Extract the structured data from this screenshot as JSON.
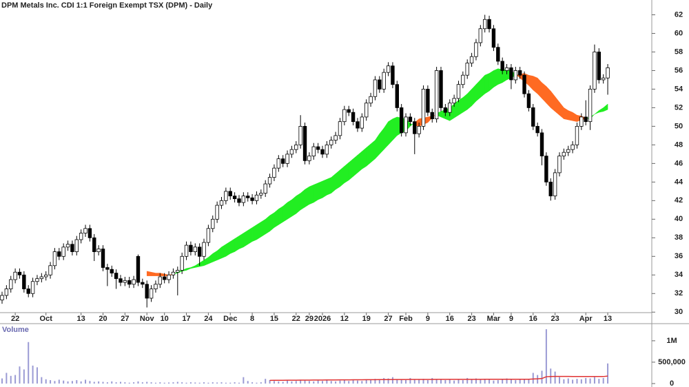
{
  "chart_data": {
    "type": "candlestick",
    "title": "DPM Metals Inc. CDI 1:1 Foreign Exempt TSX (DPM) - Daily",
    "ylim": [
      29.5,
      63
    ],
    "yticks": [
      30,
      32,
      34,
      36,
      38,
      40,
      42,
      44,
      46,
      48,
      50,
      52,
      54,
      56,
      58,
      60,
      62
    ],
    "xticks": [
      {
        "value": 3,
        "label": "22"
      },
      {
        "value": 10,
        "label": "Oct"
      },
      {
        "value": 18,
        "label": "13"
      },
      {
        "value": 23,
        "label": "20"
      },
      {
        "value": 28,
        "label": "27"
      },
      {
        "value": 33,
        "label": "Nov"
      },
      {
        "value": 37,
        "label": "10"
      },
      {
        "value": 42,
        "label": "17"
      },
      {
        "value": 47,
        "label": "24"
      },
      {
        "value": 52,
        "label": "Dec"
      },
      {
        "value": 57,
        "label": "8"
      },
      {
        "value": 62,
        "label": "15"
      },
      {
        "value": 67,
        "label": "22"
      },
      {
        "value": 70,
        "label": "29"
      },
      {
        "value": 73,
        "label": "2026"
      },
      {
        "value": 78,
        "label": "12"
      },
      {
        "value": 83,
        "label": "19"
      },
      {
        "value": 88,
        "label": "27"
      },
      {
        "value": 92,
        "label": "Feb"
      },
      {
        "value": 97,
        "label": "9"
      },
      {
        "value": 102,
        "label": "16"
      },
      {
        "value": 107,
        "label": "23"
      },
      {
        "value": 112,
        "label": "Mar"
      },
      {
        "value": 116,
        "label": "9"
      },
      {
        "value": 121,
        "label": "16"
      },
      {
        "value": 126,
        "label": "23"
      },
      {
        "value": 133,
        "label": "Apr"
      },
      {
        "value": 138,
        "label": "13"
      }
    ],
    "open": [
      31.3,
      31.8,
      32.5,
      33.5,
      34.3,
      34.0,
      32.5,
      32.0,
      33.3,
      33.6,
      33.8,
      34.0,
      35.0,
      36.5,
      36.0,
      37.0,
      37.3,
      36.5,
      37.8,
      38.5,
      39.0,
      38.0,
      36.5,
      36.8,
      34.8,
      34.6,
      34.2,
      33.6,
      33.2,
      33.4,
      33.0,
      36.0,
      33.2,
      33.0,
      31.5,
      32.5,
      33.0,
      33.8,
      33.5,
      34.0,
      34.3,
      34.5,
      36.0,
      37.2,
      36.5,
      37.0,
      36.0,
      37.5,
      39.0,
      40.0,
      41.5,
      42.0,
      43.0,
      42.5,
      42.2,
      41.8,
      42.5,
      42.3,
      42.0,
      42.6,
      42.8,
      43.8,
      44.5,
      45.5,
      46.5,
      46.0,
      47.0,
      47.5,
      48.0,
      50.0,
      46.3,
      46.8,
      47.8,
      47.5,
      47.0,
      48.0,
      48.5,
      49.0,
      50.5,
      51.8,
      51.5,
      50.5,
      49.8,
      51.0,
      52.5,
      53.2,
      55.0,
      54.0,
      55.8,
      56.5,
      54.5,
      52.0,
      49.3,
      51.0,
      50.5,
      49.2,
      50.0,
      54.0,
      51.5,
      50.8,
      56.0,
      52.0,
      51.5,
      52.5,
      53.0,
      54.5,
      55.5,
      56.8,
      57.5,
      59.0,
      60.5,
      61.5,
      60.5,
      58.5,
      57.0,
      56.0,
      56.3,
      55.0,
      56.0,
      55.5,
      53.5,
      52.0,
      50.0,
      49.3,
      46.8,
      44.0,
      42.5,
      45.0,
      46.8,
      47.2,
      47.5,
      48.0,
      50.0,
      51.0,
      50.5,
      54.0,
      58.0,
      55.0,
      55.2
    ],
    "high": [
      32.2,
      32.9,
      33.9,
      34.7,
      34.7,
      34.4,
      32.9,
      33.7,
      34.0,
      34.2,
      34.4,
      35.4,
      36.9,
      36.9,
      37.4,
      37.7,
      37.7,
      38.2,
      38.9,
      39.4,
      39.4,
      38.4,
      37.2,
      37.2,
      35.2,
      35.0,
      34.6,
      34.0,
      33.8,
      33.8,
      33.9,
      36.2,
      33.6,
      33.4,
      32.9,
      33.4,
      34.2,
      34.2,
      34.4,
      34.7,
      34.9,
      36.4,
      37.6,
      37.6,
      37.4,
      37.4,
      37.9,
      39.4,
      40.4,
      41.9,
      42.4,
      43.4,
      43.4,
      42.9,
      42.6,
      42.9,
      42.9,
      42.7,
      43.0,
      43.2,
      44.2,
      44.9,
      45.9,
      46.9,
      46.9,
      47.4,
      47.9,
      48.4,
      51.2,
      50.4,
      47.2,
      48.2,
      48.2,
      47.9,
      48.4,
      48.9,
      49.4,
      50.9,
      52.2,
      52.2,
      51.9,
      50.9,
      51.4,
      52.9,
      53.6,
      55.4,
      55.4,
      56.2,
      56.9,
      56.9,
      54.9,
      52.4,
      51.4,
      51.4,
      50.9,
      50.4,
      54.4,
      54.4,
      51.9,
      56.4,
      56.4,
      52.4,
      52.9,
      53.4,
      54.9,
      55.9,
      57.2,
      57.9,
      59.4,
      60.9,
      62.0,
      61.9,
      60.9,
      58.9,
      57.4,
      56.7,
      56.7,
      56.4,
      56.4,
      55.9,
      53.9,
      52.4,
      50.4,
      49.7,
      47.2,
      44.4,
      45.4,
      47.2,
      47.6,
      47.9,
      48.4,
      50.4,
      51.4,
      52.8,
      54.4,
      58.8,
      58.4,
      55.6,
      56.7
    ],
    "low": [
      30.9,
      31.4,
      32.1,
      33.1,
      33.6,
      32.1,
      31.6,
      31.6,
      32.9,
      33.2,
      33.4,
      33.6,
      34.6,
      35.6,
      35.6,
      36.6,
      36.1,
      36.1,
      37.4,
      38.1,
      37.6,
      35.5,
      36.1,
      34.4,
      32.8,
      33.8,
      32.5,
      32.8,
      32.8,
      32.6,
      32.6,
      32.8,
      32.6,
      30.5,
      31.1,
      32.1,
      32.6,
      33.1,
      33.1,
      33.6,
      31.8,
      34.1,
      35.6,
      36.1,
      36.1,
      35.0,
      35.6,
      37.1,
      38.6,
      39.6,
      41.1,
      41.6,
      42.1,
      41.8,
      41.4,
      41.4,
      41.9,
      41.6,
      41.6,
      42.2,
      42.4,
      43.4,
      44.1,
      45.1,
      45.6,
      45.6,
      46.6,
      47.1,
      47.6,
      45.9,
      45.9,
      46.4,
      47.1,
      46.6,
      46.6,
      47.6,
      48.1,
      48.6,
      50.1,
      51.1,
      50.1,
      49.4,
      49.4,
      50.6,
      52.1,
      52.8,
      53.6,
      53.6,
      55.4,
      54.1,
      51.6,
      48.9,
      48.9,
      50.1,
      47.0,
      48.8,
      49.6,
      51.1,
      50.4,
      50.4,
      51.6,
      51.1,
      51.1,
      52.1,
      52.6,
      54.1,
      55.1,
      56.4,
      57.1,
      58.6,
      60.1,
      60.1,
      58.1,
      56.6,
      55.6,
      55.6,
      54.0,
      54.6,
      55.1,
      53.1,
      51.6,
      49.6,
      48.9,
      45.8,
      43.6,
      42.0,
      42.1,
      44.6,
      46.4,
      46.8,
      47.1,
      47.6,
      49.6,
      50.1,
      49.6,
      53.6,
      54.6,
      54.6,
      53.4
    ],
    "close": [
      31.8,
      32.5,
      33.5,
      34.3,
      34.0,
      32.5,
      32.0,
      33.3,
      33.6,
      33.8,
      34.0,
      35.0,
      36.5,
      36.0,
      37.0,
      37.3,
      36.5,
      37.8,
      38.5,
      39.0,
      38.0,
      36.5,
      36.8,
      34.8,
      34.6,
      34.2,
      33.6,
      33.2,
      33.4,
      33.0,
      33.5,
      33.2,
      33.0,
      31.5,
      32.5,
      33.0,
      33.8,
      33.5,
      34.0,
      34.3,
      34.5,
      36.0,
      37.2,
      36.5,
      37.0,
      36.0,
      37.5,
      39.0,
      40.0,
      41.5,
      42.0,
      43.0,
      42.5,
      42.2,
      41.8,
      42.5,
      42.3,
      42.0,
      42.6,
      42.8,
      43.8,
      44.5,
      45.5,
      46.5,
      46.0,
      47.0,
      47.5,
      48.0,
      50.0,
      46.3,
      46.8,
      47.8,
      47.5,
      47.0,
      48.0,
      48.5,
      49.0,
      50.5,
      51.8,
      51.5,
      50.5,
      49.8,
      51.0,
      52.5,
      53.2,
      55.0,
      54.0,
      55.8,
      56.5,
      54.5,
      52.0,
      49.3,
      51.0,
      50.5,
      49.2,
      50.0,
      54.0,
      51.5,
      50.8,
      56.0,
      52.0,
      51.5,
      52.5,
      53.0,
      54.5,
      55.5,
      56.8,
      57.5,
      59.0,
      60.5,
      61.5,
      60.5,
      58.5,
      57.0,
      56.0,
      56.3,
      55.0,
      56.0,
      55.5,
      53.5,
      52.0,
      50.0,
      49.3,
      46.8,
      44.0,
      42.5,
      45.0,
      46.8,
      47.2,
      47.5,
      48.0,
      50.0,
      51.0,
      50.5,
      54.0,
      58.0,
      55.0,
      55.2,
      56.3
    ],
    "ribbon": {
      "up_color": "#22ee22",
      "down_color": "#ff6a22",
      "fast": [
        null,
        null,
        null,
        null,
        null,
        null,
        null,
        null,
        null,
        null,
        null,
        null,
        null,
        null,
        null,
        null,
        null,
        null,
        null,
        null,
        null,
        null,
        null,
        null,
        null,
        null,
        null,
        null,
        null,
        null,
        null,
        null,
        null,
        33.9,
        33.9,
        33.9,
        33.9,
        33.9,
        33.9,
        34.1,
        34.3,
        34.5,
        34.7,
        34.8,
        35.0,
        35.3,
        35.6,
        35.9,
        36.3,
        36.6,
        37.0,
        37.3,
        37.6,
        37.9,
        38.2,
        38.5,
        38.8,
        39.1,
        39.4,
        39.7,
        40.0,
        40.4,
        40.7,
        41.1,
        41.4,
        41.8,
        42.1,
        42.5,
        42.8,
        43.2,
        43.5,
        43.7,
        43.9,
        44.1,
        44.3,
        44.5,
        44.9,
        45.3,
        45.7,
        46.1,
        46.5,
        46.9,
        47.3,
        47.7,
        48.1,
        48.5,
        49.2,
        49.8,
        50.5,
        50.8,
        51.0,
        50.9,
        50.8,
        50.3,
        50.1,
        50.0,
        50.2,
        50.4,
        50.9,
        51.4,
        51.6,
        51.8,
        52.0,
        52.4,
        52.8,
        53.1,
        53.5,
        54.0,
        54.5,
        55.0,
        55.5,
        55.7,
        56.0,
        56.2,
        56.1,
        56.1,
        56.0,
        55.6,
        55.2,
        54.8,
        54.4,
        53.9,
        53.5,
        53.0,
        52.5,
        52.0,
        51.6,
        51.2,
        50.8,
        50.7,
        50.6,
        50.5,
        50.7,
        50.8,
        51.0,
        51.3,
        51.7,
        52.0,
        52.4
      ],
      "slow": [
        null,
        null,
        null,
        null,
        null,
        null,
        null,
        null,
        null,
        null,
        null,
        null,
        null,
        null,
        null,
        null,
        null,
        null,
        null,
        null,
        null,
        null,
        null,
        null,
        null,
        null,
        null,
        null,
        null,
        null,
        null,
        null,
        null,
        34.4,
        34.3,
        34.2,
        34.2,
        34.1,
        34.0,
        34.1,
        34.2,
        34.4,
        34.5,
        34.7,
        34.8,
        34.9,
        35.0,
        35.2,
        35.4,
        35.6,
        35.8,
        36.0,
        36.3,
        36.5,
        36.8,
        37.0,
        37.3,
        37.6,
        37.8,
        38.1,
        38.4,
        38.7,
        39.1,
        39.4,
        39.7,
        40.0,
        40.3,
        40.6,
        41.0,
        41.3,
        41.6,
        41.8,
        42.1,
        42.3,
        42.6,
        42.8,
        43.2,
        43.5,
        43.9,
        44.2,
        44.6,
        45.0,
        45.4,
        45.7,
        46.1,
        46.5,
        47.0,
        47.5,
        48.0,
        48.5,
        49.0,
        49.3,
        49.5,
        50.0,
        50.4,
        50.8,
        50.9,
        51.0,
        51.1,
        51.2,
        51.0,
        50.8,
        50.6,
        50.9,
        51.2,
        51.5,
        51.8,
        52.2,
        52.7,
        53.1,
        53.5,
        53.8,
        54.2,
        54.5,
        54.7,
        55.0,
        55.2,
        55.5,
        55.6,
        55.7,
        55.5,
        55.4,
        55.2,
        54.7,
        54.3,
        53.8,
        53.2,
        52.6,
        52.0,
        51.7,
        51.5,
        51.2,
        51.1,
        50.9,
        50.8,
        51.3,
        51.5,
        51.6,
        51.8
      ]
    },
    "volume": {
      "label": "Volume",
      "color": "#9a9ad4",
      "ma_color": "#e03030",
      "ylim": [
        0,
        1320000
      ],
      "yticks": [
        0,
        {
          "value": 500000,
          "label": "500,000"
        },
        {
          "value": 1000000,
          "label": "1M"
        }
      ],
      "values": [
        120000,
        250000,
        180000,
        200000,
        400000,
        330000,
        970000,
        420000,
        380000,
        150000,
        100000,
        80000,
        60000,
        90000,
        70000,
        50000,
        60000,
        80000,
        50000,
        90000,
        60000,
        40000,
        50000,
        40000,
        30000,
        50000,
        30000,
        40000,
        30000,
        20000,
        30000,
        50000,
        30000,
        40000,
        30000,
        20000,
        30000,
        20000,
        25000,
        30000,
        40000,
        30000,
        20000,
        30000,
        25000,
        20000,
        30000,
        20000,
        30000,
        25000,
        30000,
        20000,
        20000,
        30000,
        20000,
        150000,
        60000,
        30000,
        20000,
        30000,
        110000,
        80000,
        60000,
        50000,
        40000,
        70000,
        50000,
        60000,
        90000,
        70000,
        60000,
        50000,
        70000,
        60000,
        80000,
        60000,
        50000,
        70000,
        90000,
        60000,
        80000,
        70000,
        60000,
        90000,
        80000,
        110000,
        100000,
        130000,
        120000,
        150000,
        100000,
        90000,
        80000,
        130000,
        100000,
        90000,
        110000,
        80000,
        130000,
        100000,
        90000,
        80000,
        100000,
        70000,
        90000,
        80000,
        130000,
        90000,
        120000,
        100000,
        110000,
        90000,
        70000,
        80000,
        90000,
        120000,
        100000,
        80000,
        90000,
        110000,
        100000,
        250000,
        200000,
        300000,
        1270000,
        350000,
        280000,
        150000,
        100000,
        120000,
        90000,
        110000,
        100000,
        130000,
        120000,
        150000,
        110000,
        130000,
        470000
      ],
      "ma": [
        null,
        null,
        null,
        null,
        null,
        null,
        null,
        null,
        null,
        null,
        null,
        null,
        null,
        null,
        null,
        null,
        null,
        null,
        null,
        null,
        null,
        null,
        null,
        null,
        null,
        null,
        null,
        null,
        null,
        null,
        null,
        null,
        null,
        null,
        null,
        null,
        null,
        null,
        null,
        null,
        null,
        null,
        null,
        null,
        null,
        null,
        null,
        null,
        null,
        null,
        null,
        null,
        null,
        null,
        null,
        null,
        null,
        null,
        null,
        null,
        null,
        75000,
        76000,
        76000,
        77000,
        78000,
        78000,
        79000,
        80000,
        80000,
        81000,
        82000,
        82000,
        83000,
        84000,
        84000,
        85000,
        86000,
        86000,
        87000,
        88000,
        88000,
        89000,
        90000,
        90000,
        91000,
        92000,
        92000,
        93000,
        94000,
        94000,
        95000,
        95000,
        96000,
        96000,
        96000,
        97000,
        97000,
        97000,
        98000,
        98000,
        98000,
        98000,
        98000,
        98000,
        98000,
        99000,
        99000,
        99000,
        99000,
        100000,
        100000,
        100000,
        100000,
        100000,
        100000,
        100000,
        100000,
        100000,
        100000,
        101000,
        106000,
        110000,
        118000,
        160000,
        165000,
        168000,
        168000,
        167000,
        167000,
        166000,
        166000,
        165000,
        165000,
        165000,
        165000,
        164000,
        164000,
        175000
      ]
    }
  }
}
